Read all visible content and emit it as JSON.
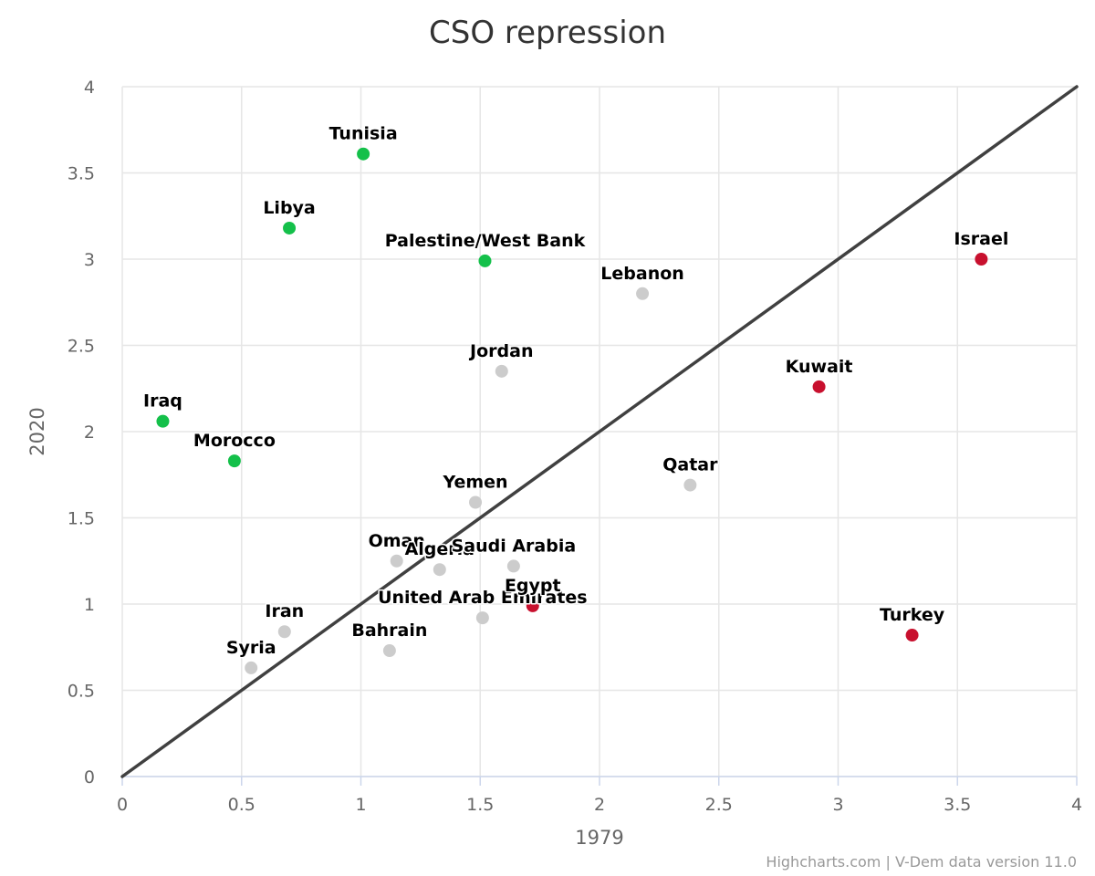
{
  "chart_data": {
    "type": "scatter",
    "title": "CSO repression",
    "xlabel": "1979",
    "ylabel": "2020",
    "xlim": [
      0,
      4
    ],
    "ylim": [
      0,
      4
    ],
    "x_ticks": [
      "0",
      "0.5",
      "1",
      "1.5",
      "2",
      "2.5",
      "3",
      "3.5",
      "4"
    ],
    "y_ticks": [
      "0",
      "0.5",
      "1",
      "1.5",
      "2",
      "2.5",
      "3",
      "3.5",
      "4"
    ],
    "grid": true,
    "reference_line": {
      "from": [
        0,
        0
      ],
      "to": [
        4,
        4
      ],
      "color": "#404040"
    },
    "colors": {
      "improved": "#14c04a",
      "declined": "#c8102e",
      "neutral": "#cccccc"
    },
    "points": [
      {
        "name": "Tunisia",
        "x": 1.01,
        "y": 3.61,
        "group": "improved"
      },
      {
        "name": "Libya",
        "x": 0.7,
        "y": 3.18,
        "group": "improved"
      },
      {
        "name": "Palestine/West Bank",
        "x": 1.52,
        "y": 2.99,
        "group": "improved"
      },
      {
        "name": "Iraq",
        "x": 0.17,
        "y": 2.06,
        "group": "improved"
      },
      {
        "name": "Morocco",
        "x": 0.47,
        "y": 1.83,
        "group": "improved"
      },
      {
        "name": "Lebanon",
        "x": 2.18,
        "y": 2.8,
        "group": "neutral"
      },
      {
        "name": "Jordan",
        "x": 1.59,
        "y": 2.35,
        "group": "neutral"
      },
      {
        "name": "Yemen",
        "x": 1.48,
        "y": 1.59,
        "group": "neutral"
      },
      {
        "name": "Qatar",
        "x": 2.38,
        "y": 1.69,
        "group": "neutral"
      },
      {
        "name": "Oman",
        "x": 1.15,
        "y": 1.25,
        "group": "neutral"
      },
      {
        "name": "Algeria",
        "x": 1.33,
        "y": 1.2,
        "group": "neutral"
      },
      {
        "name": "Saudi Arabia",
        "x": 1.64,
        "y": 1.22,
        "group": "neutral"
      },
      {
        "name": "United Arab Emirates",
        "x": 1.51,
        "y": 0.92,
        "group": "neutral"
      },
      {
        "name": "Bahrain",
        "x": 1.12,
        "y": 0.73,
        "group": "neutral"
      },
      {
        "name": "Iran",
        "x": 0.68,
        "y": 0.84,
        "group": "neutral"
      },
      {
        "name": "Syria",
        "x": 0.54,
        "y": 0.63,
        "group": "neutral"
      },
      {
        "name": "Egypt",
        "x": 1.72,
        "y": 0.99,
        "group": "declined"
      },
      {
        "name": "Israel",
        "x": 3.6,
        "y": 3.0,
        "group": "declined"
      },
      {
        "name": "Kuwait",
        "x": 2.92,
        "y": 2.26,
        "group": "declined"
      },
      {
        "name": "Turkey",
        "x": 3.31,
        "y": 0.82,
        "group": "declined"
      }
    ]
  },
  "credits": "Highcharts.com | V-Dem data version 11.0"
}
